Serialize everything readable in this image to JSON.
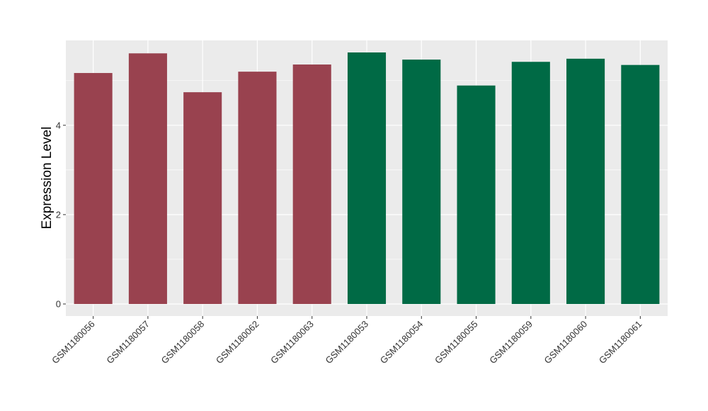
{
  "chart_data": {
    "type": "bar",
    "title": "",
    "xlabel": "",
    "ylabel": "Expression Level",
    "categories": [
      "GSM1180056",
      "GSM1180057",
      "GSM1180058",
      "GSM1180062",
      "GSM1180063",
      "GSM1180053",
      "GSM1180054",
      "GSM1180055",
      "GSM1180059",
      "GSM1180060",
      "GSM1180061"
    ],
    "values": [
      5.17,
      5.61,
      4.74,
      5.2,
      5.36,
      5.63,
      5.47,
      4.89,
      5.42,
      5.49,
      5.35
    ],
    "bar_colors": [
      "#99424f",
      "#99424f",
      "#99424f",
      "#99424f",
      "#99424f",
      "#006a45",
      "#006a45",
      "#006a45",
      "#006a45",
      "#006a45",
      "#006a45"
    ],
    "ylim": [
      -0.27,
      5.9
    ],
    "yticks": [
      0,
      2,
      4
    ],
    "grid": true,
    "legend": "none",
    "colors": {
      "panel_background": "#ebebeb",
      "grid": "#ffffff",
      "group_a": "#99424f",
      "group_b": "#006a45"
    }
  }
}
